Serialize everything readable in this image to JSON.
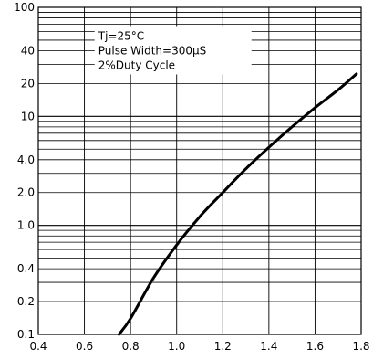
{
  "chart_data": {
    "type": "line",
    "title": "",
    "xlabel": "",
    "ylabel": "",
    "xlim": [
      0.4,
      1.8
    ],
    "ylim": [
      0.1,
      100
    ],
    "y_scale": "log",
    "grid": true,
    "legend": "none",
    "x_ticks": [
      "0.4",
      "0.6",
      "0.8",
      "1.0",
      "1.2",
      "1.4",
      "1.6",
      "1.8"
    ],
    "y_ticks": [
      {
        "value": 100,
        "label": "100"
      },
      {
        "value": 40,
        "label": "40"
      },
      {
        "value": 20,
        "label": "20"
      },
      {
        "value": 10,
        "label": "10"
      },
      {
        "value": 4,
        "label": "4.0"
      },
      {
        "value": 2,
        "label": "2.0"
      },
      {
        "value": 1,
        "label": "1.0"
      },
      {
        "value": 0.4,
        "label": "0.4"
      },
      {
        "value": 0.2,
        "label": "0.2"
      },
      {
        "value": 0.1,
        "label": "0.1"
      }
    ],
    "annotations": [
      "Tj=25°C",
      "Pulse Width=300μS",
      "2%Duty Cycle"
    ],
    "line_color": "#000000",
    "series": [
      {
        "x": [
          0.75,
          0.8,
          0.9,
          1.0,
          1.1,
          1.2,
          1.3,
          1.4,
          1.5,
          1.6,
          1.7,
          1.78
        ],
        "y": [
          0.1,
          0.14,
          0.33,
          0.66,
          1.2,
          2.0,
          3.3,
          5.2,
          8.0,
          12.0,
          17.5,
          24.5
        ]
      }
    ]
  }
}
